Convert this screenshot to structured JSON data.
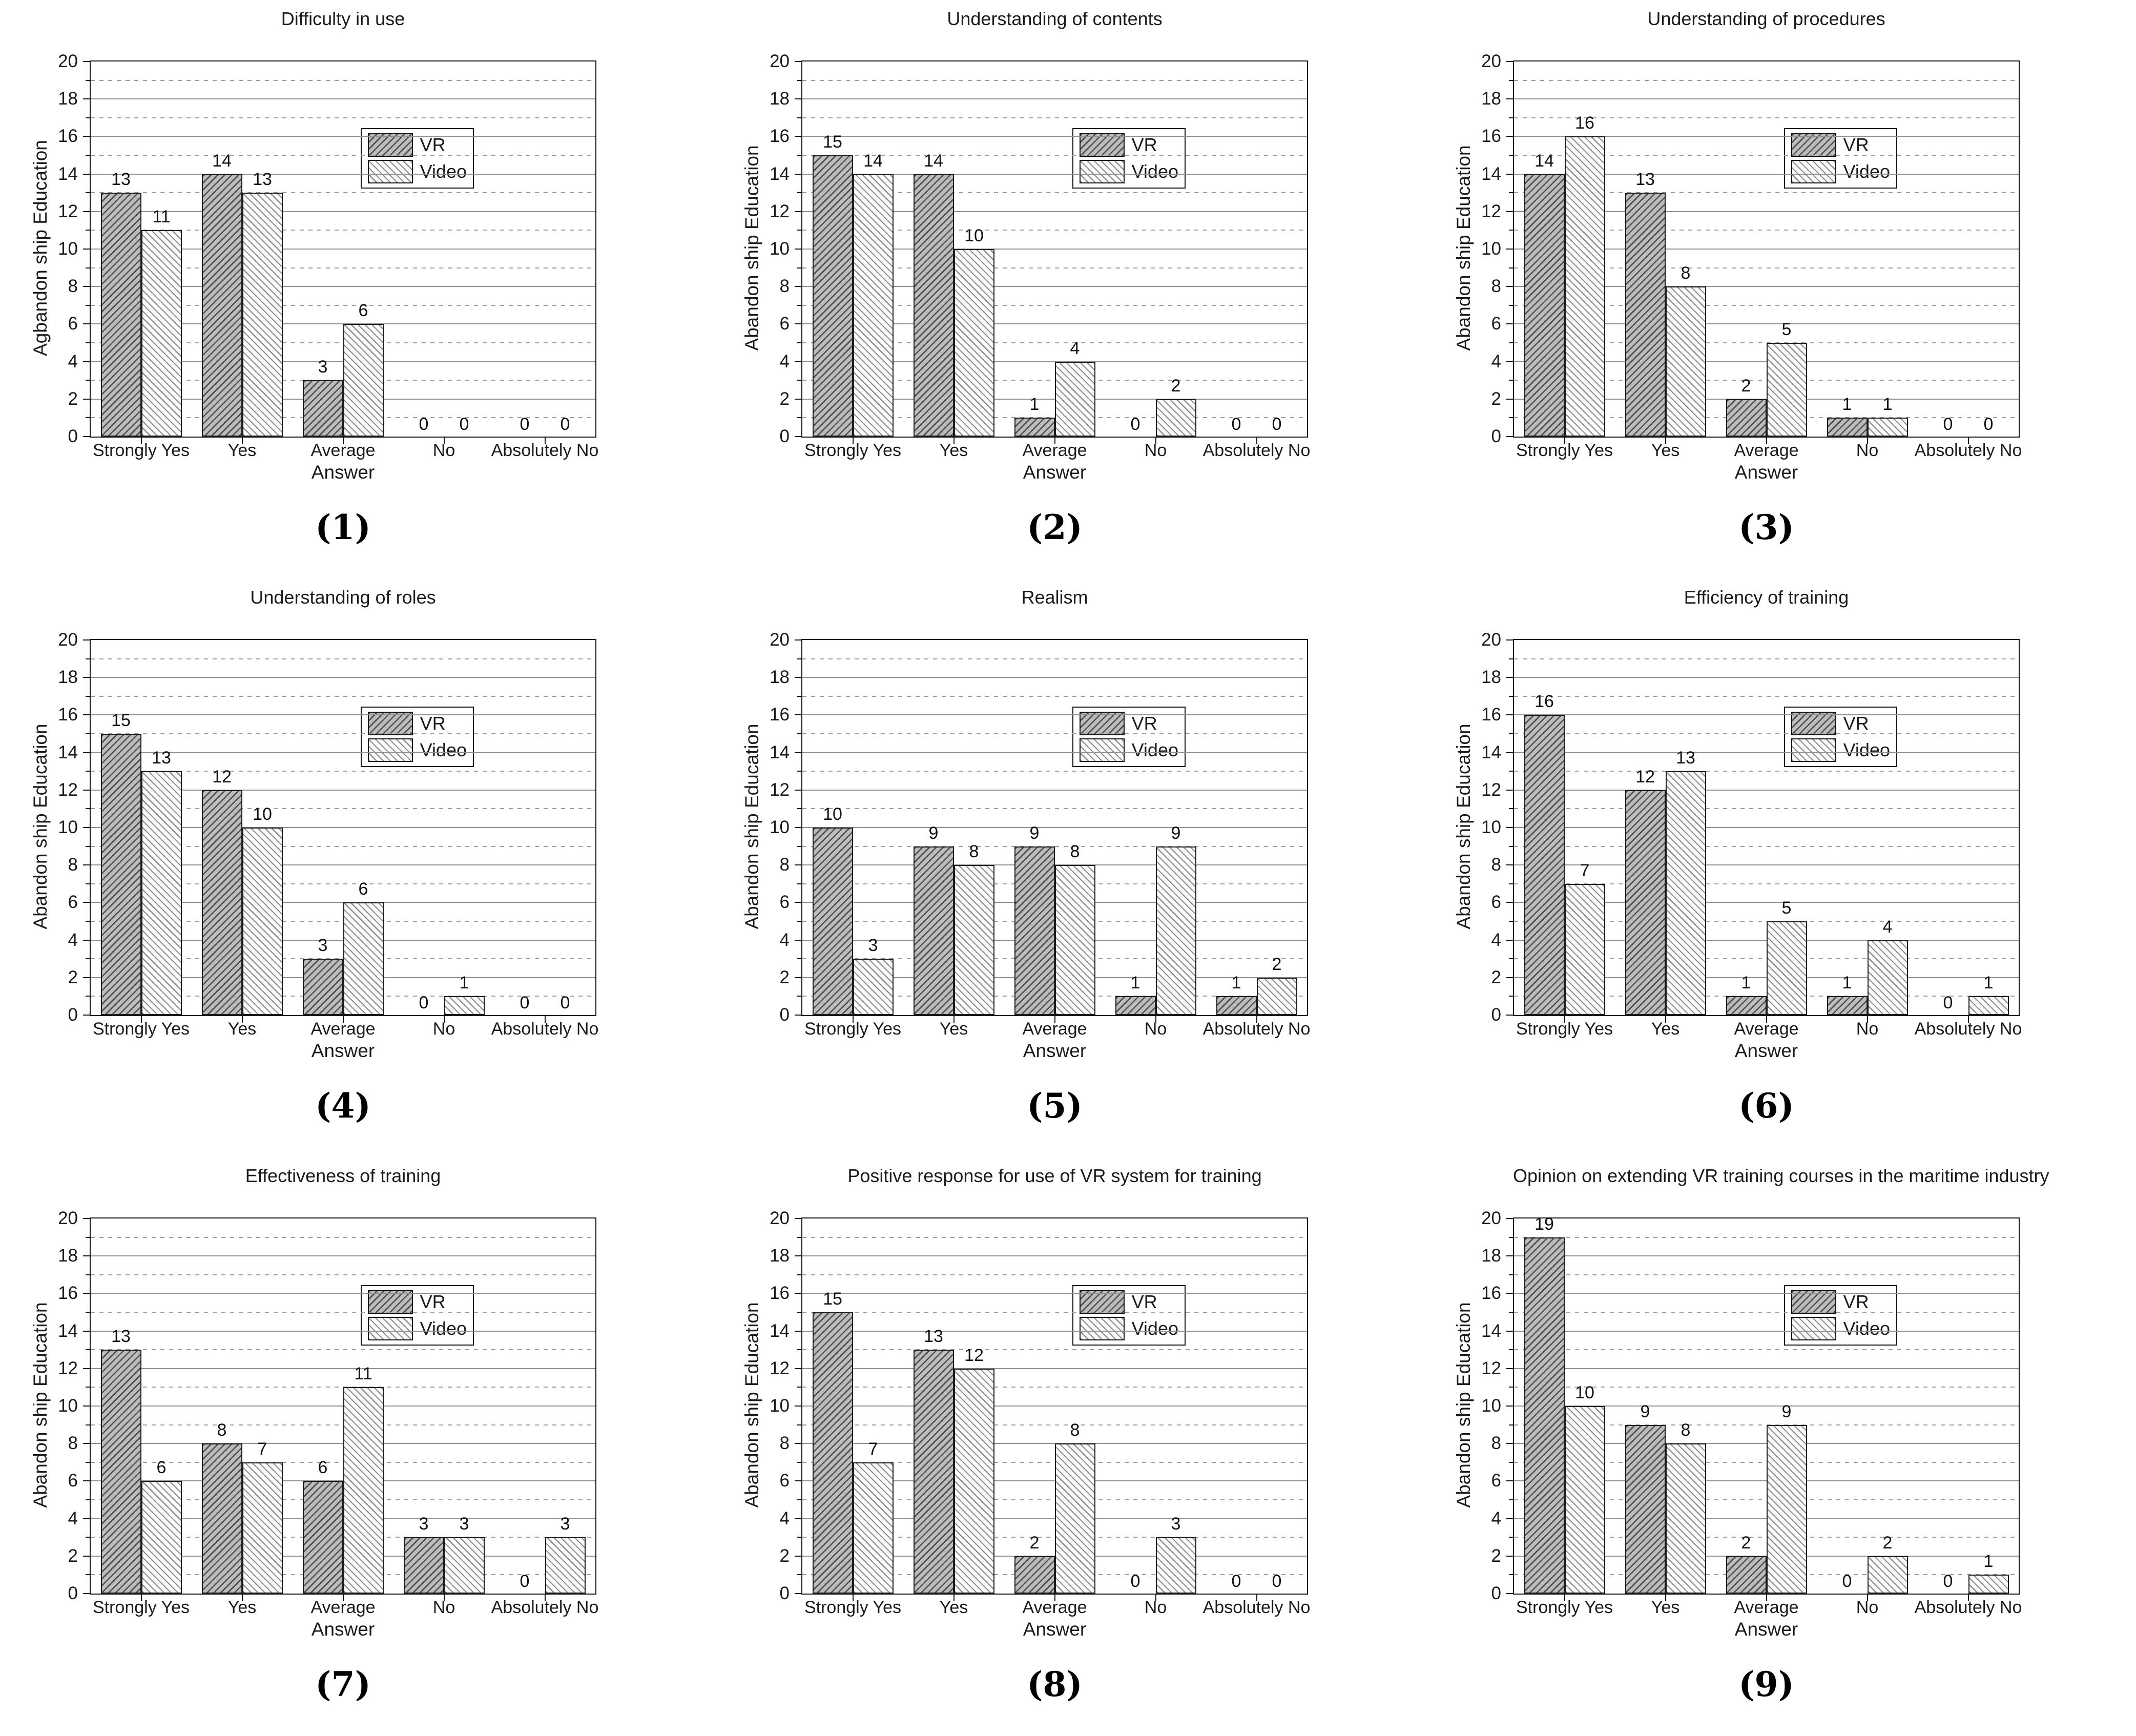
{
  "figure_title": "",
  "legend": [
    "VR",
    "Video"
  ],
  "style": {
    "vr_fill": "#bcbcbc",
    "vr_hatch": "#4f4f4f",
    "video_fill": "#fbfbfb",
    "video_hatch": "#8e8e8e",
    "grid_solid": "#919191",
    "grid_dotted": "#9d9d9d",
    "axis": "#151515",
    "background": "#ffffff"
  },
  "chart_data": [
    {
      "type": "bar",
      "caption": "(1)",
      "title": "Difficulty in use",
      "xlabel": "Answer",
      "ylabel": "Agbandon ship Education",
      "ylim": [
        0,
        20
      ],
      "ytick_step": 2,
      "grid": "horizontal solid at even, dotted at odd",
      "legend_position": "top-right",
      "categories": [
        "Strongly Yes",
        "Yes",
        "Average",
        "No",
        "Absolutely No"
      ],
      "series": [
        {
          "name": "VR",
          "values": [
            13,
            14,
            3,
            0,
            0
          ]
        },
        {
          "name": "Video",
          "values": [
            11,
            13,
            6,
            0,
            0
          ]
        }
      ]
    },
    {
      "type": "bar",
      "caption": "(2)",
      "title": "Understanding of contents",
      "xlabel": "Answer",
      "ylabel": "Abandon ship Education",
      "ylim": [
        0,
        20
      ],
      "ytick_step": 2,
      "grid": "horizontal solid at even, dotted at odd",
      "legend_position": "top-right",
      "categories": [
        "Strongly Yes",
        "Yes",
        "Average",
        "No",
        "Absolutely No"
      ],
      "series": [
        {
          "name": "VR",
          "values": [
            15,
            14,
            1,
            0,
            0
          ]
        },
        {
          "name": "Video",
          "values": [
            14,
            10,
            4,
            2,
            0
          ]
        }
      ]
    },
    {
      "type": "bar",
      "caption": "(3)",
      "title": "Understanding of procedures",
      "xlabel": "Answer",
      "ylabel": "Abandon ship Education",
      "ylim": [
        0,
        20
      ],
      "ytick_step": 2,
      "grid": "horizontal solid at even, dotted at odd",
      "legend_position": "top-right",
      "categories": [
        "Strongly Yes",
        "Yes",
        "Average",
        "No",
        "Absolutely No"
      ],
      "series": [
        {
          "name": "VR",
          "values": [
            14,
            13,
            2,
            1,
            0
          ]
        },
        {
          "name": "Video",
          "values": [
            16,
            8,
            5,
            1,
            0
          ]
        }
      ]
    },
    {
      "type": "bar",
      "caption": "(4)",
      "title": "Understanding of roles",
      "xlabel": "Answer",
      "ylabel": "Abandon ship Education",
      "ylim": [
        0,
        20
      ],
      "ytick_step": 2,
      "grid": "horizontal solid at even, dotted at odd",
      "legend_position": "top-right",
      "categories": [
        "Strongly Yes",
        "Yes",
        "Average",
        "No",
        "Absolutely No"
      ],
      "series": [
        {
          "name": "VR",
          "values": [
            15,
            12,
            3,
            0,
            0
          ]
        },
        {
          "name": "Video",
          "values": [
            13,
            10,
            6,
            1,
            0
          ]
        }
      ]
    },
    {
      "type": "bar",
      "caption": "(5)",
      "title": "Realism",
      "xlabel": "Answer",
      "ylabel": "Abandon ship Education",
      "ylim": [
        0,
        20
      ],
      "ytick_step": 2,
      "grid": "horizontal solid at even, dotted at odd",
      "legend_position": "top-right",
      "categories": [
        "Strongly Yes",
        "Yes",
        "Average",
        "No",
        "Absolutely No"
      ],
      "series": [
        {
          "name": "VR",
          "values": [
            10,
            9,
            9,
            1,
            1
          ]
        },
        {
          "name": "Video",
          "values": [
            3,
            8,
            8,
            9,
            2
          ]
        }
      ]
    },
    {
      "type": "bar",
      "caption": "(6)",
      "title": "Efficiency of training",
      "xlabel": "Answer",
      "ylabel": "Abandon ship Education",
      "ylim": [
        0,
        20
      ],
      "ytick_step": 2,
      "grid": "horizontal solid at even, dotted at odd",
      "legend_position": "top-right",
      "categories": [
        "Strongly Yes",
        "Yes",
        "Average",
        "No",
        "Absolutely No"
      ],
      "series": [
        {
          "name": "VR",
          "values": [
            16,
            12,
            1,
            1,
            0
          ]
        },
        {
          "name": "Video",
          "values": [
            7,
            13,
            5,
            4,
            1
          ]
        }
      ]
    },
    {
      "type": "bar",
      "caption": "(7)",
      "title": "Effectiveness of training",
      "xlabel": "Answer",
      "ylabel": "Abandon ship Education",
      "ylim": [
        0,
        20
      ],
      "ytick_step": 2,
      "grid": "horizontal solid at even, dotted at odd",
      "legend_position": "top-right",
      "categories": [
        "Strongly Yes",
        "Yes",
        "Average",
        "No",
        "Absolutely No"
      ],
      "series": [
        {
          "name": "VR",
          "values": [
            13,
            8,
            6,
            3,
            0
          ]
        },
        {
          "name": "Video",
          "values": [
            6,
            7,
            11,
            3,
            3
          ]
        }
      ]
    },
    {
      "type": "bar",
      "caption": "(8)",
      "title": "Positive response for use of VR system for training",
      "xlabel": "Answer",
      "ylabel": "Abandon ship Education",
      "ylim": [
        0,
        20
      ],
      "ytick_step": 2,
      "grid": "horizontal solid at even, dotted at odd",
      "legend_position": "top-right",
      "categories": [
        "Strongly Yes",
        "Yes",
        "Average",
        "No",
        "Absolutely No"
      ],
      "series": [
        {
          "name": "VR",
          "values": [
            15,
            13,
            2,
            0,
            0
          ]
        },
        {
          "name": "Video",
          "values": [
            7,
            12,
            8,
            3,
            0
          ]
        }
      ]
    },
    {
      "type": "bar",
      "caption": "(9)",
      "title": "Opinion on extending VR training courses in the maritime industry",
      "xlabel": "Answer",
      "ylabel": "Abandon ship Education",
      "ylim": [
        0,
        20
      ],
      "ytick_step": 2,
      "grid": "horizontal solid at even, dotted at odd",
      "legend_position": "top-right",
      "categories": [
        "Strongly Yes",
        "Yes",
        "Average",
        "No",
        "Absolutely No"
      ],
      "series": [
        {
          "name": "VR",
          "values": [
            19,
            9,
            2,
            0,
            0
          ]
        },
        {
          "name": "Video",
          "values": [
            10,
            8,
            9,
            2,
            1
          ]
        }
      ]
    }
  ]
}
